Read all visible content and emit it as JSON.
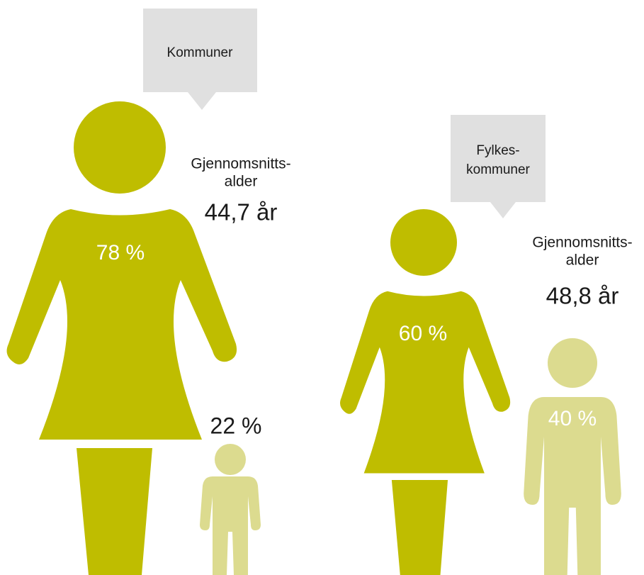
{
  "groups": [
    {
      "label": [
        "Kommuner"
      ],
      "age_label": [
        "Gjennomsnitts-",
        "alder"
      ],
      "age": "44,7 år",
      "women_share": "78 %",
      "men_share": "22 %"
    },
    {
      "label": [
        "Fylkes-",
        "kommuner"
      ],
      "age_label": [
        "Gjennomsnitts-",
        "alder"
      ],
      "age": "48,8 år",
      "women_share": "60 %",
      "men_share": "40 %"
    }
  ]
}
